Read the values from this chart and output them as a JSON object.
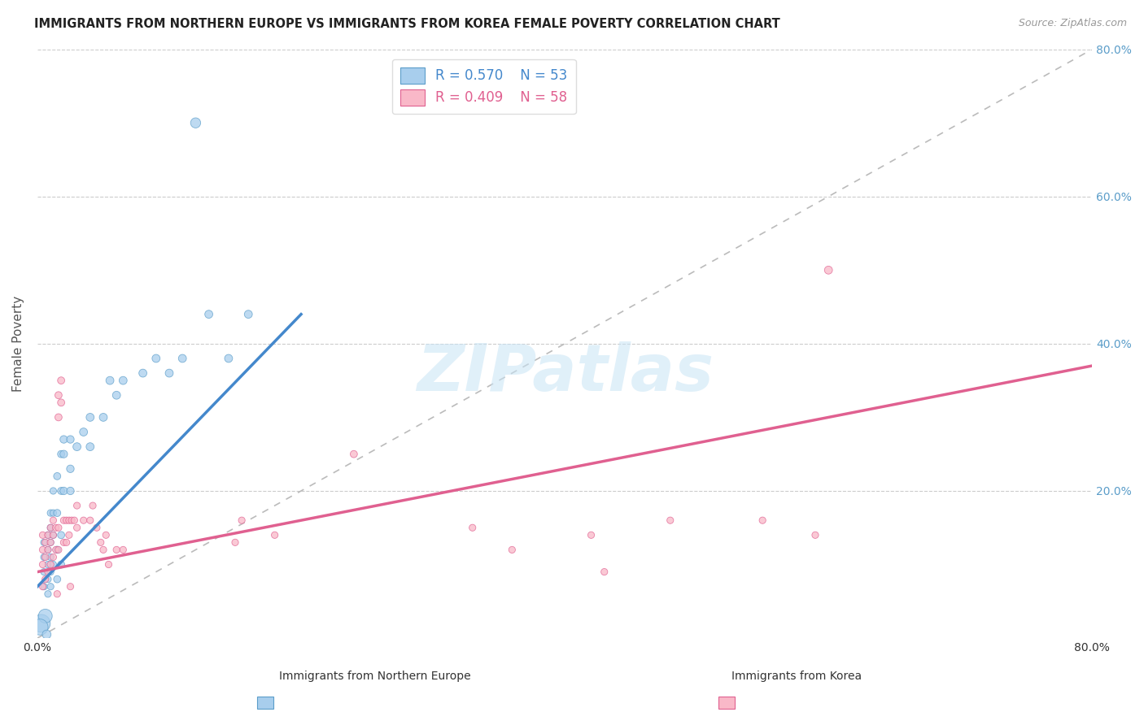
{
  "title": "IMMIGRANTS FROM NORTHERN EUROPE VS IMMIGRANTS FROM KOREA FEMALE POVERTY CORRELATION CHART",
  "source": "Source: ZipAtlas.com",
  "ylabel": "Female Poverty",
  "xlim": [
    0.0,
    0.8
  ],
  "ylim": [
    0.0,
    0.8
  ],
  "legend_blue_r": "R = 0.570",
  "legend_blue_n": "N = 53",
  "legend_pink_r": "R = 0.409",
  "legend_pink_n": "N = 58",
  "blue_color": "#A8CEED",
  "pink_color": "#F9B8C8",
  "blue_edge_color": "#5B9DC9",
  "pink_edge_color": "#E06090",
  "blue_line_color": "#4488CC",
  "pink_line_color": "#E06090",
  "diagonal_color": "#BBBBBB",
  "watermark_text": "ZIPatlas",
  "blue_line": [
    [
      0.0,
      0.07
    ],
    [
      0.2,
      0.44
    ]
  ],
  "pink_line": [
    [
      0.0,
      0.09
    ],
    [
      0.8,
      0.37
    ]
  ],
  "blue_points": [
    [
      0.005,
      0.07
    ],
    [
      0.005,
      0.09
    ],
    [
      0.005,
      0.11
    ],
    [
      0.005,
      0.13
    ],
    [
      0.008,
      0.06
    ],
    [
      0.008,
      0.08
    ],
    [
      0.008,
      0.1
    ],
    [
      0.008,
      0.12
    ],
    [
      0.008,
      0.14
    ],
    [
      0.01,
      0.07
    ],
    [
      0.01,
      0.09
    ],
    [
      0.01,
      0.11
    ],
    [
      0.01,
      0.13
    ],
    [
      0.01,
      0.15
    ],
    [
      0.01,
      0.17
    ],
    [
      0.012,
      0.1
    ],
    [
      0.012,
      0.14
    ],
    [
      0.012,
      0.17
    ],
    [
      0.012,
      0.2
    ],
    [
      0.015,
      0.08
    ],
    [
      0.015,
      0.12
    ],
    [
      0.015,
      0.17
    ],
    [
      0.015,
      0.22
    ],
    [
      0.018,
      0.1
    ],
    [
      0.018,
      0.14
    ],
    [
      0.018,
      0.2
    ],
    [
      0.018,
      0.25
    ],
    [
      0.02,
      0.2
    ],
    [
      0.02,
      0.25
    ],
    [
      0.02,
      0.27
    ],
    [
      0.025,
      0.2
    ],
    [
      0.025,
      0.23
    ],
    [
      0.025,
      0.27
    ],
    [
      0.03,
      0.26
    ],
    [
      0.035,
      0.28
    ],
    [
      0.04,
      0.26
    ],
    [
      0.04,
      0.3
    ],
    [
      0.05,
      0.3
    ],
    [
      0.055,
      0.35
    ],
    [
      0.06,
      0.33
    ],
    [
      0.065,
      0.35
    ],
    [
      0.08,
      0.36
    ],
    [
      0.09,
      0.38
    ],
    [
      0.1,
      0.36
    ],
    [
      0.11,
      0.38
    ],
    [
      0.13,
      0.44
    ],
    [
      0.145,
      0.38
    ],
    [
      0.16,
      0.44
    ],
    [
      0.12,
      0.7
    ],
    [
      0.003,
      0.02
    ],
    [
      0.006,
      0.03
    ],
    [
      0.002,
      0.015
    ],
    [
      0.007,
      0.005
    ]
  ],
  "blue_sizes": [
    35,
    35,
    35,
    35,
    35,
    35,
    35,
    35,
    35,
    35,
    35,
    35,
    35,
    35,
    35,
    35,
    35,
    35,
    35,
    40,
    40,
    40,
    40,
    40,
    40,
    40,
    40,
    45,
    45,
    45,
    45,
    45,
    45,
    50,
    50,
    50,
    50,
    50,
    50,
    50,
    50,
    50,
    50,
    50,
    50,
    50,
    50,
    50,
    80,
    250,
    150,
    200,
    60
  ],
  "pink_points": [
    [
      0.004,
      0.07
    ],
    [
      0.004,
      0.1
    ],
    [
      0.004,
      0.12
    ],
    [
      0.004,
      0.14
    ],
    [
      0.006,
      0.08
    ],
    [
      0.006,
      0.11
    ],
    [
      0.006,
      0.13
    ],
    [
      0.008,
      0.09
    ],
    [
      0.008,
      0.12
    ],
    [
      0.008,
      0.14
    ],
    [
      0.01,
      0.1
    ],
    [
      0.01,
      0.13
    ],
    [
      0.01,
      0.15
    ],
    [
      0.012,
      0.11
    ],
    [
      0.012,
      0.14
    ],
    [
      0.012,
      0.16
    ],
    [
      0.014,
      0.12
    ],
    [
      0.014,
      0.15
    ],
    [
      0.016,
      0.12
    ],
    [
      0.016,
      0.15
    ],
    [
      0.016,
      0.3
    ],
    [
      0.016,
      0.33
    ],
    [
      0.018,
      0.32
    ],
    [
      0.018,
      0.35
    ],
    [
      0.02,
      0.13
    ],
    [
      0.02,
      0.16
    ],
    [
      0.022,
      0.13
    ],
    [
      0.022,
      0.16
    ],
    [
      0.024,
      0.14
    ],
    [
      0.024,
      0.16
    ],
    [
      0.026,
      0.16
    ],
    [
      0.028,
      0.16
    ],
    [
      0.03,
      0.15
    ],
    [
      0.03,
      0.18
    ],
    [
      0.035,
      0.16
    ],
    [
      0.04,
      0.16
    ],
    [
      0.042,
      0.18
    ],
    [
      0.045,
      0.15
    ],
    [
      0.048,
      0.13
    ],
    [
      0.05,
      0.12
    ],
    [
      0.052,
      0.14
    ],
    [
      0.054,
      0.1
    ],
    [
      0.06,
      0.12
    ],
    [
      0.065,
      0.12
    ],
    [
      0.15,
      0.13
    ],
    [
      0.155,
      0.16
    ],
    [
      0.18,
      0.14
    ],
    [
      0.24,
      0.25
    ],
    [
      0.33,
      0.15
    ],
    [
      0.36,
      0.12
    ],
    [
      0.42,
      0.14
    ],
    [
      0.43,
      0.09
    ],
    [
      0.48,
      0.16
    ],
    [
      0.55,
      0.16
    ],
    [
      0.59,
      0.14
    ],
    [
      0.6,
      0.5
    ],
    [
      0.015,
      0.06
    ],
    [
      0.025,
      0.07
    ]
  ],
  "pink_sizes": [
    35,
    35,
    35,
    35,
    35,
    35,
    35,
    35,
    35,
    35,
    35,
    35,
    35,
    35,
    35,
    35,
    35,
    35,
    35,
    35,
    40,
    40,
    40,
    40,
    35,
    35,
    35,
    35,
    35,
    35,
    35,
    35,
    35,
    35,
    35,
    35,
    35,
    35,
    35,
    35,
    35,
    35,
    35,
    35,
    35,
    35,
    35,
    40,
    35,
    35,
    35,
    35,
    35,
    35,
    35,
    50,
    35,
    35
  ]
}
